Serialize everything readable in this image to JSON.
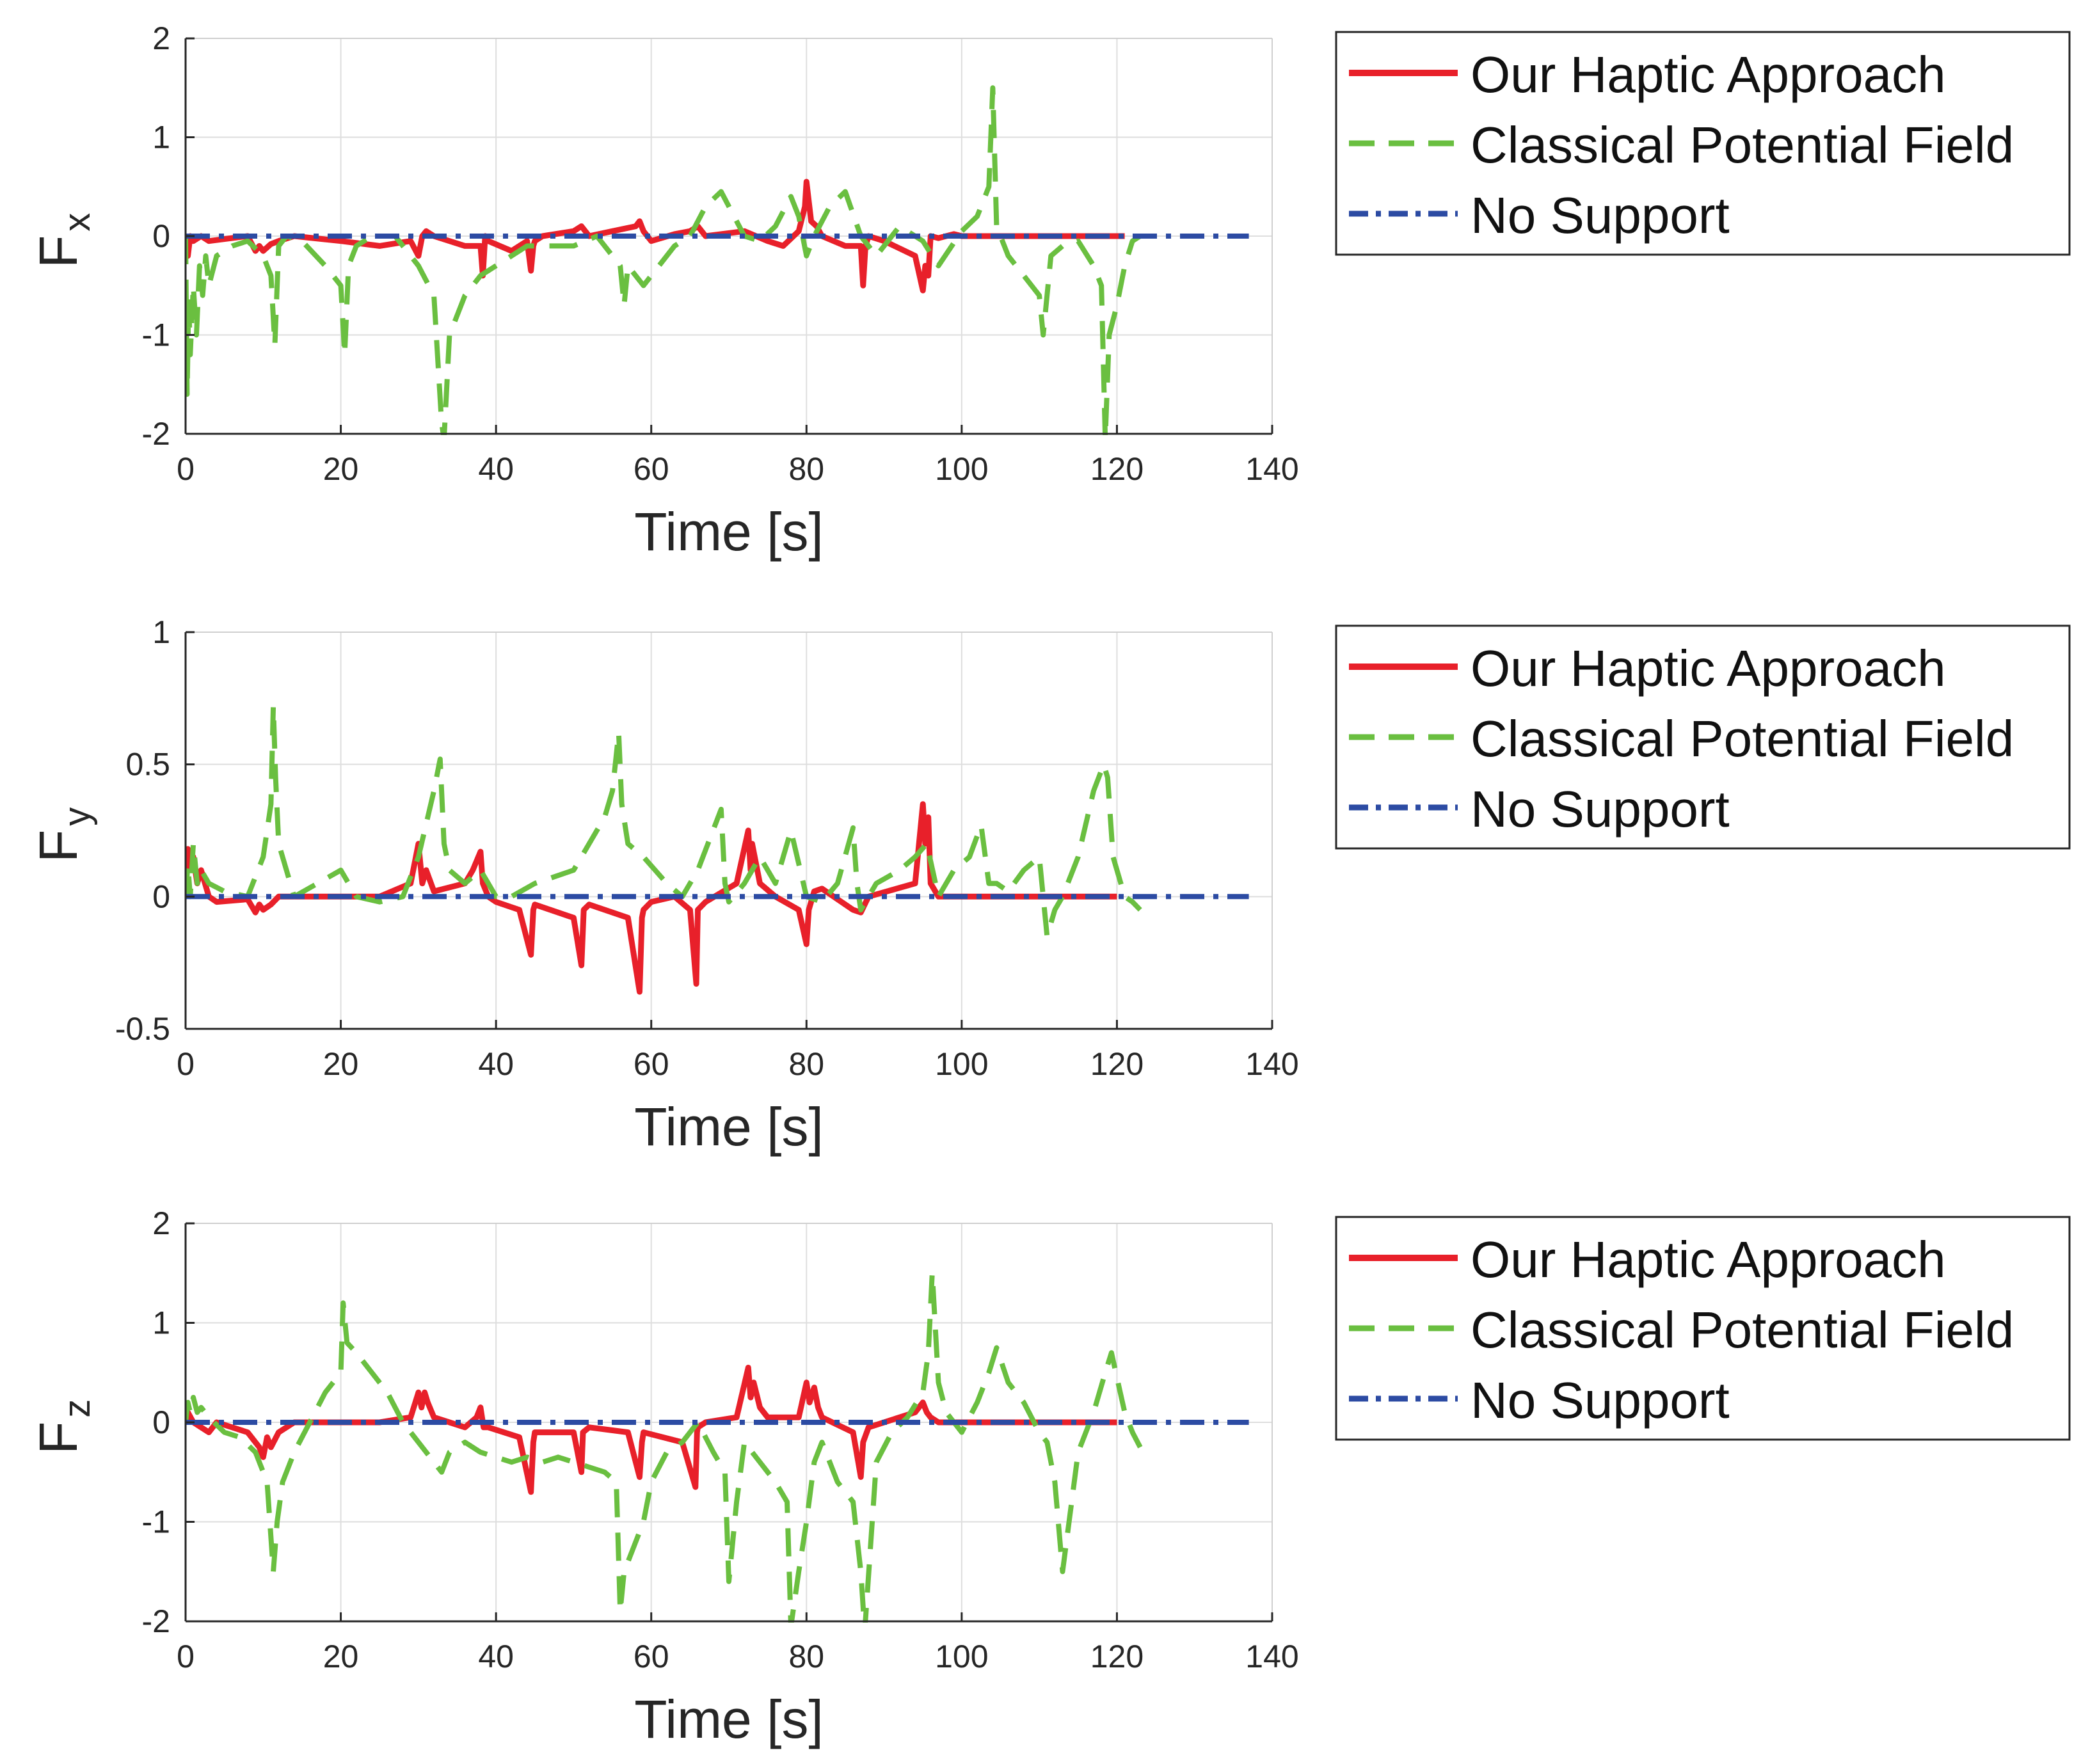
{
  "chart_data": [
    {
      "type": "line",
      "ylabel": "F",
      "ylabel_sub": "x",
      "xlabel": "Time [s]",
      "xlim": [
        0,
        140
      ],
      "ylim": [
        -2,
        2
      ],
      "xticks": [
        "0",
        "20",
        "40",
        "60",
        "80",
        "100",
        "120",
        "140"
      ],
      "yticks": [
        {
          "v": 2,
          "label": "2"
        },
        {
          "v": 1,
          "label": "1"
        },
        {
          "v": 0,
          "label": "0"
        },
        {
          "v": -1,
          "label": "-1"
        },
        {
          "v": -2,
          "label": "-2"
        }
      ],
      "grid": true,
      "legend": "outside-right",
      "series": [
        {
          "name": "Our Haptic Approach",
          "color": "#e8202a",
          "style": "solid",
          "x": [
            0,
            0.3,
            0.6,
            1,
            2,
            3,
            8,
            9,
            9.5,
            10,
            11,
            12,
            14,
            20,
            25,
            29,
            30,
            30.5,
            31,
            32,
            36,
            38,
            38.3,
            38.6,
            39,
            42,
            44,
            44.5,
            44.8,
            45,
            46,
            50,
            51,
            52,
            55,
            58,
            58.5,
            59,
            60,
            63,
            65,
            66,
            67,
            72,
            75,
            77,
            79,
            79.8,
            80,
            80.6,
            81.3,
            82,
            85,
            87,
            87.3,
            87.6,
            88,
            90,
            94,
            95,
            95.3,
            95.7,
            96,
            97,
            99,
            100,
            110,
            120,
            121
          ],
          "y": [
            0,
            -0.2,
            0,
            -0.05,
            0,
            -0.05,
            0,
            -0.15,
            -0.1,
            -0.15,
            -0.08,
            -0.05,
            0,
            -0.05,
            -0.1,
            -0.05,
            -0.2,
            0,
            0.05,
            0,
            -0.1,
            -0.1,
            -0.4,
            0,
            -0.05,
            -0.15,
            -0.05,
            -0.35,
            -0.1,
            -0.05,
            0,
            0.05,
            0.1,
            0,
            0.05,
            0.1,
            0.15,
            0.05,
            -0.05,
            0.02,
            0.05,
            0.1,
            0,
            0.05,
            -0.05,
            -0.1,
            0.05,
            0.3,
            0.55,
            0.15,
            0.1,
            0,
            -0.1,
            -0.1,
            -0.5,
            -0.1,
            0,
            -0.05,
            -0.2,
            -0.55,
            -0.3,
            -0.4,
            0,
            -0.02,
            0.02,
            0,
            0,
            0,
            0
          ]
        },
        {
          "name": "Classical Potential Field",
          "color": "#6abf40",
          "style": "dashed",
          "x": [
            0,
            0.2,
            0.4,
            0.6,
            1,
            1.4,
            1.8,
            2.2,
            2.6,
            3,
            4,
            6,
            8,
            10,
            11,
            11.5,
            12,
            13,
            15,
            18,
            20,
            20.5,
            21,
            22,
            24,
            27,
            30,
            32,
            33,
            33.3,
            34,
            36,
            38,
            40,
            42,
            44,
            48,
            50,
            53,
            55,
            56,
            56.5,
            57,
            59,
            61,
            63,
            65,
            67,
            69,
            72,
            74,
            76,
            78,
            79,
            80,
            81,
            83,
            85,
            87,
            89,
            92,
            95,
            97,
            100,
            102,
            103.5,
            104,
            104.5,
            106,
            108,
            110,
            110.5,
            111.5,
            113,
            115,
            117,
            118,
            118.5,
            119,
            120,
            121,
            122,
            123
          ],
          "y": [
            0,
            -1.6,
            -0.6,
            -1.2,
            -0.5,
            -1,
            -0.3,
            -0.6,
            -0.2,
            -0.5,
            -0.2,
            -0.1,
            -0.05,
            -0.2,
            -0.4,
            -1.1,
            -0.1,
            0,
            -0.05,
            -0.3,
            -0.5,
            -1.2,
            -0.3,
            -0.1,
            0,
            0,
            -0.3,
            -0.6,
            -1.9,
            -2.05,
            -1,
            -0.6,
            -0.4,
            -0.3,
            -0.2,
            -0.1,
            -0.1,
            -0.1,
            0,
            -0.2,
            -0.3,
            -0.7,
            -0.3,
            -0.5,
            -0.3,
            -0.1,
            0,
            0.3,
            0.45,
            0,
            -0.05,
            0.1,
            0.4,
            0.2,
            -0.2,
            0,
            0.3,
            0.45,
            0,
            -0.2,
            0.1,
            -0.05,
            -0.3,
            0.05,
            0.2,
            0.5,
            1.5,
            0.1,
            -0.2,
            -0.4,
            -0.6,
            -1,
            -0.2,
            -0.1,
            -0.05,
            -0.3,
            -0.5,
            -2.05,
            -1,
            -0.7,
            -0.3,
            -0.05,
            0
          ]
        },
        {
          "name": "No Support",
          "color": "#2c4ba3",
          "style": "dashdot",
          "x": [
            0,
            137
          ],
          "y": [
            0,
            0
          ]
        }
      ]
    },
    {
      "type": "line",
      "ylabel": "F",
      "ylabel_sub": "y",
      "xlabel": "Time [s]",
      "xlim": [
        0,
        140
      ],
      "ylim": [
        -0.5,
        1
      ],
      "xticks": [
        "0",
        "20",
        "40",
        "60",
        "80",
        "100",
        "120",
        "140"
      ],
      "yticks": [
        {
          "v": 1,
          "label": "1"
        },
        {
          "v": 0.5,
          "label": "0.5"
        },
        {
          "v": 0,
          "label": "0"
        },
        {
          "v": -0.5,
          "label": "-0.5"
        }
      ],
      "grid": true,
      "legend": "outside-right",
      "series": [
        {
          "name": "Our Haptic Approach",
          "color": "#e8202a",
          "style": "solid",
          "x": [
            0,
            0.3,
            0.6,
            1,
            1.5,
            2,
            3,
            4,
            8,
            9,
            9.5,
            10,
            11,
            12,
            20,
            25,
            29,
            30,
            30.5,
            31,
            32,
            36,
            37,
            38,
            38.3,
            39,
            40,
            43,
            44.5,
            44.8,
            45,
            50,
            51,
            51.3,
            52,
            57,
            58.5,
            58.8,
            59,
            60,
            63,
            65,
            65.8,
            66,
            67,
            71,
            72.5,
            72.8,
            73,
            74,
            76,
            79,
            80,
            80.3,
            81,
            82,
            86,
            87,
            88,
            94,
            95,
            95.3,
            95.7,
            96,
            97,
            100,
            110,
            120
          ],
          "y": [
            0.05,
            0.18,
            0.1,
            0.15,
            0.05,
            0.1,
            0,
            -0.02,
            -0.01,
            -0.06,
            -0.03,
            -0.05,
            -0.03,
            0,
            0,
            0,
            0.05,
            0.2,
            0.05,
            0.1,
            0.02,
            0.05,
            0.1,
            0.17,
            0.05,
            0,
            -0.02,
            -0.05,
            -0.22,
            -0.05,
            -0.03,
            -0.08,
            -0.26,
            -0.05,
            -0.03,
            -0.08,
            -0.36,
            -0.08,
            -0.05,
            -0.02,
            0,
            -0.05,
            -0.33,
            -0.05,
            -0.02,
            0.05,
            0.25,
            0.1,
            0.2,
            0.05,
            0,
            -0.05,
            -0.18,
            -0.05,
            0.02,
            0.03,
            -0.05,
            -0.06,
            0,
            0.05,
            0.35,
            0.2,
            0.3,
            0.05,
            0,
            0,
            0,
            0
          ]
        },
        {
          "name": "Classical Potential Field",
          "color": "#6abf40",
          "style": "dashed",
          "x": [
            0,
            0.3,
            0.6,
            1,
            1.5,
            2,
            3,
            5,
            8,
            10,
            11,
            11.3,
            11.6,
            12,
            14,
            17,
            20,
            22,
            25,
            28,
            30,
            32,
            32.8,
            33.3,
            34,
            36,
            38,
            40,
            42,
            45,
            50,
            54,
            55,
            55.8,
            56.2,
            57,
            59,
            62,
            64,
            66,
            69,
            69.5,
            70,
            72,
            74,
            76,
            78,
            80,
            82,
            84,
            86,
            86.5,
            87,
            89,
            92,
            94,
            95.5,
            97,
            99,
            101,
            102.5,
            103.5,
            104.5,
            106,
            108,
            110,
            111,
            112,
            113,
            115,
            117,
            118.3,
            118.8,
            119.5,
            121,
            122,
            123
          ],
          "y": [
            0,
            0.12,
            0,
            0.2,
            0.05,
            0.1,
            0.05,
            0.02,
            0,
            0.15,
            0.35,
            0.72,
            0.45,
            0.2,
            0,
            0.05,
            0.1,
            0,
            -0.02,
            0,
            0.15,
            0.4,
            0.52,
            0.2,
            0.1,
            0.05,
            0.1,
            0,
            0,
            0.05,
            0.1,
            0.3,
            0.4,
            0.62,
            0.35,
            0.2,
            0.15,
            0.05,
            0,
            0.1,
            0.33,
            0.05,
            -0.02,
            0.05,
            0.15,
            0.05,
            0.25,
            0,
            -0.02,
            0.05,
            0.26,
            0.05,
            -0.05,
            0.05,
            0.1,
            0.15,
            0.2,
            0,
            0.1,
            0.15,
            0.27,
            0.05,
            0.05,
            0.02,
            0.1,
            0.15,
            -0.15,
            -0.05,
            0,
            0.15,
            0.4,
            0.5,
            0.45,
            0.15,
            0,
            -0.02,
            -0.05
          ]
        },
        {
          "name": "No Support",
          "color": "#2c4ba3",
          "style": "dashdot",
          "x": [
            0,
            137
          ],
          "y": [
            0,
            0
          ]
        }
      ]
    },
    {
      "type": "line",
      "ylabel": "F",
      "ylabel_sub": "z",
      "xlabel": "Time [s]",
      "xlim": [
        0,
        140
      ],
      "ylim": [
        -2,
        2
      ],
      "xticks": [
        "0",
        "20",
        "40",
        "60",
        "80",
        "100",
        "120",
        "140"
      ],
      "yticks": [
        {
          "v": 2,
          "label": "2"
        },
        {
          "v": 1,
          "label": "1"
        },
        {
          "v": 0,
          "label": "0"
        },
        {
          "v": -1,
          "label": "-1"
        },
        {
          "v": -2,
          "label": "-2"
        }
      ],
      "grid": true,
      "legend": "outside-right",
      "series": [
        {
          "name": "Our Haptic Approach",
          "color": "#e8202a",
          "style": "solid",
          "x": [
            0,
            0.3,
            1,
            2,
            3,
            4,
            8,
            9.5,
            10,
            10.5,
            11,
            12,
            14,
            20,
            25,
            29,
            30,
            30.4,
            30.8,
            31.2,
            32,
            36,
            37.5,
            38,
            38.4,
            39,
            43,
            44.5,
            44.8,
            45,
            50,
            51,
            51.2,
            52,
            57,
            58.5,
            58.8,
            59,
            64,
            65.7,
            65.9,
            66,
            67,
            71,
            72.5,
            72.8,
            73.2,
            74,
            75,
            79,
            80,
            80.4,
            81,
            81.5,
            82,
            86,
            87,
            87.3,
            88,
            94,
            95,
            95.5,
            96,
            97,
            100,
            110,
            120
          ],
          "y": [
            0,
            0.1,
            0,
            -0.05,
            -0.1,
            0,
            -0.1,
            -0.25,
            -0.35,
            -0.15,
            -0.25,
            -0.1,
            0,
            0,
            0,
            0.05,
            0.3,
            0.15,
            0.3,
            0.2,
            0.05,
            -0.05,
            0.05,
            0.15,
            -0.05,
            -0.05,
            -0.15,
            -0.7,
            -0.2,
            -0.1,
            -0.1,
            -0.5,
            -0.1,
            -0.05,
            -0.1,
            -0.55,
            -0.2,
            -0.1,
            -0.2,
            -0.65,
            -0.1,
            -0.05,
            0,
            0.05,
            0.55,
            0.25,
            0.4,
            0.15,
            0.05,
            0.05,
            0.4,
            0.2,
            0.35,
            0.15,
            0.05,
            -0.1,
            -0.55,
            -0.2,
            -0.05,
            0.1,
            0.2,
            0.1,
            0.05,
            0,
            0,
            0,
            0
          ]
        },
        {
          "name": "Classical Potential Field",
          "color": "#6abf40",
          "style": "dashed",
          "x": [
            0,
            0.3,
            0.6,
            1,
            1.5,
            2,
            3,
            5,
            7,
            9,
            10.5,
            11.3,
            11.8,
            12.5,
            14,
            16,
            18,
            20,
            20.3,
            20.8,
            22,
            24,
            26,
            28,
            30,
            32,
            33,
            34,
            36,
            38,
            40,
            42,
            44,
            46,
            48,
            50,
            52,
            54,
            55.5,
            56,
            56.5,
            58,
            59,
            60,
            62,
            64,
            66,
            68,
            69.5,
            70,
            71,
            72,
            74,
            76,
            77.5,
            78,
            79,
            80,
            81,
            82,
            84,
            86,
            87,
            87.5,
            89,
            91,
            93,
            95,
            95.7,
            96.2,
            97,
            98,
            100,
            102,
            103.5,
            104.5,
            106,
            108,
            110,
            111,
            112,
            113,
            115,
            117,
            118.5,
            119.3,
            120,
            121,
            122,
            123
          ],
          "y": [
            0,
            0.2,
            0.1,
            0.25,
            0.1,
            0.15,
            0.05,
            -0.1,
            -0.15,
            -0.3,
            -0.6,
            -1.5,
            -1,
            -0.6,
            -0.3,
            0,
            0.3,
            0.5,
            1.2,
            0.8,
            0.7,
            0.5,
            0.3,
            0,
            -0.2,
            -0.4,
            -0.5,
            -0.3,
            -0.2,
            -0.3,
            -0.35,
            -0.4,
            -0.35,
            -0.4,
            -0.35,
            -0.4,
            -0.45,
            -0.5,
            -0.6,
            -1.9,
            -1.5,
            -1.2,
            -1,
            -0.6,
            -0.3,
            -0.2,
            0,
            -0.3,
            -0.5,
            -1.6,
            -0.8,
            -0.2,
            -0.4,
            -0.6,
            -0.8,
            -2.05,
            -1.5,
            -1,
            -0.4,
            -0.2,
            -0.6,
            -0.8,
            -1.5,
            -2.1,
            -0.4,
            -0.1,
            0.05,
            0.3,
            0.7,
            1.5,
            0.4,
            0.1,
            -0.1,
            0.2,
            0.5,
            0.75,
            0.4,
            0.2,
            -0.1,
            -0.2,
            -0.6,
            -1.5,
            -0.3,
            0.1,
            0.5,
            0.7,
            0.45,
            0.1,
            -0.1,
            -0.25
          ]
        },
        {
          "name": "No Support",
          "color": "#2c4ba3",
          "style": "dashdot",
          "x": [
            0,
            137
          ],
          "y": [
            0,
            0
          ]
        }
      ]
    }
  ]
}
